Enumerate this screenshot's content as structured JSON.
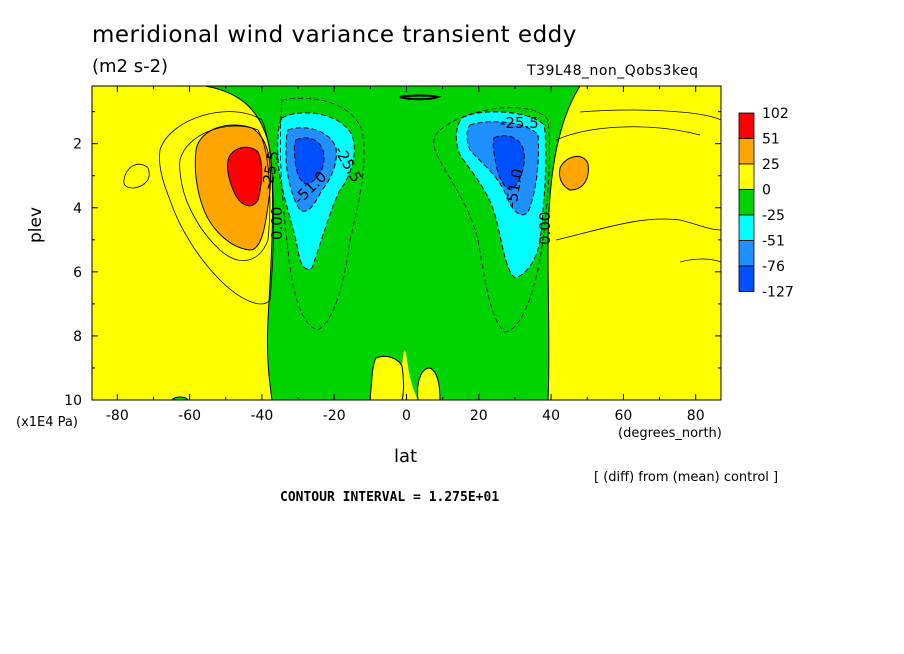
{
  "chart_data": {
    "type": "heatmap",
    "title": "meridional wind variance transient eddy",
    "units": "(m2 s-2)",
    "run_label": "T39L48_non_Qobs3keq",
    "xlabel": "lat",
    "x_unit": "(degrees_north)",
    "ylabel": "plev",
    "y_unit": "(x1E4 Pa)",
    "xlim": [
      -87,
      87
    ],
    "ylim": [
      10,
      0.2
    ],
    "x_ticks": [
      "-80",
      "-60",
      "-40",
      "-20",
      "0",
      "20",
      "40",
      "60",
      "80"
    ],
    "x_tick_values": [
      -80,
      -60,
      -40,
      -20,
      0,
      20,
      40,
      60,
      80
    ],
    "y_ticks": [
      "2",
      "4",
      "6",
      "8",
      "10"
    ],
    "y_tick_values": [
      2,
      4,
      6,
      8,
      10
    ],
    "colorbar": {
      "labels": [
        "102",
        "51",
        "25",
        "0",
        "-25",
        "-51",
        "-76",
        "-127"
      ],
      "colors": [
        "#ff0000",
        "#ffa500",
        "#ffff00",
        "#00d400",
        "#00ffff",
        "#1e90ff",
        "#0050ff"
      ]
    },
    "contour_labels": [
      "-25.5",
      "-51.0",
      "-25.5",
      "-51.0",
      "-25.5",
      "0.00",
      "0.00"
    ],
    "features": [
      {
        "name": "positive max SH",
        "lat": -46,
        "plev": 2.8,
        "value": 102
      },
      {
        "name": "negative min SH",
        "lat": -28,
        "plev": 2.5,
        "value": -100
      },
      {
        "name": "negative min NH",
        "lat": 29,
        "plev": 2.6,
        "value": -100
      },
      {
        "name": "positive NH",
        "lat": 46,
        "plev": 3.0,
        "value": 30
      }
    ],
    "note": "[ (diff) from (mean) control ]",
    "contour_interval_text": "CONTOUR INTERVAL = 1.275E+01"
  }
}
